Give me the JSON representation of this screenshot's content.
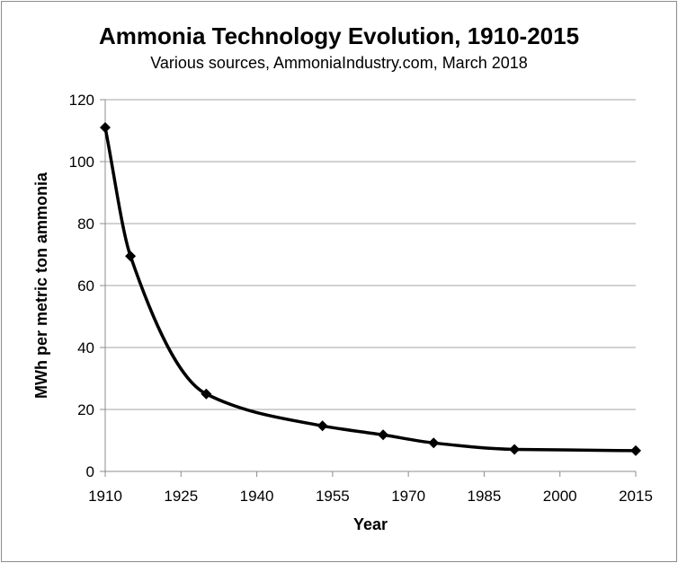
{
  "chart_data": {
    "type": "line",
    "title": "Ammonia Technology Evolution, 1910-2015",
    "subtitle": "Various sources, AmmoniaIndustry.com, March 2018",
    "xlabel": "Year",
    "ylabel": "MWh per metric ton ammonia",
    "xlim": [
      1910,
      2015
    ],
    "ylim": [
      0,
      120
    ],
    "x_ticks": [
      1910,
      1925,
      1940,
      1955,
      1970,
      1985,
      2000,
      2015
    ],
    "y_ticks": [
      0,
      20,
      40,
      60,
      80,
      100,
      120
    ],
    "grid": "horizontal",
    "legend": "none",
    "smoothed": true,
    "marker": "diamond",
    "line_color": "#000000",
    "grid_color": "#a6a6a6",
    "series": [
      {
        "x": [
          1910,
          1915,
          1930,
          1953,
          1965,
          1975,
          1991,
          2015
        ],
        "y": [
          111,
          69.5,
          25,
          14.7,
          11.8,
          9.2,
          7.1,
          6.7
        ]
      }
    ]
  }
}
